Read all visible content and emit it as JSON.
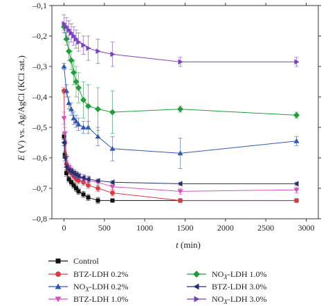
{
  "chart_data": {
    "type": "line",
    "xlabel": "t (min)",
    "ylabel": "E (V) vs. Ag/AgCl (KCl sat.)",
    "xlim": [
      -150,
      3150
    ],
    "ylim": [
      -0.8,
      -0.1
    ],
    "xticks": [
      0,
      500,
      1000,
      1500,
      2000,
      2500,
      3000
    ],
    "xtick_labels": [
      "0",
      "500",
      "1000",
      "1500",
      "2000",
      "2500",
      "3000"
    ],
    "yticks": [
      -0.1,
      -0.2,
      -0.3,
      -0.4,
      -0.5,
      -0.6,
      -0.7,
      -0.8
    ],
    "ytick_labels": [
      "–0,1",
      "–0,2",
      "–0,3",
      "–0,4",
      "–0,5",
      "–0,6",
      "–0,7",
      "–0,8"
    ],
    "grid": false,
    "legend_position": "bottom",
    "series": [
      {
        "name": "Control",
        "color": "#111111",
        "marker": "square",
        "x": [
          0,
          10,
          30,
          60,
          90,
          120,
          150,
          180,
          240,
          300,
          420,
          600,
          1440,
          2880
        ],
        "y": [
          -0.53,
          -0.59,
          -0.65,
          -0.67,
          -0.68,
          -0.69,
          -0.7,
          -0.71,
          -0.72,
          -0.73,
          -0.74,
          -0.74,
          -0.74,
          -0.74
        ],
        "err": [
          0.01,
          0.01,
          0.01,
          0.01,
          0.01,
          0.01,
          0.01,
          0.01,
          0.01,
          0.01,
          0.01,
          0.005,
          0.005,
          0.005
        ]
      },
      {
        "name": "BTZ-LDH 0.2%",
        "color": "#e0383e",
        "marker": "circle",
        "x": [
          0,
          10,
          30,
          60,
          90,
          120,
          150,
          180,
          240,
          300,
          420,
          600,
          1440,
          2880
        ],
        "y": [
          -0.38,
          -0.55,
          -0.62,
          -0.64,
          -0.65,
          -0.66,
          -0.67,
          -0.675,
          -0.68,
          -0.69,
          -0.7,
          -0.715,
          -0.74,
          -0.74
        ],
        "err": [
          0.01,
          0.01,
          0.01,
          0.01,
          0.01,
          0.01,
          0.01,
          0.01,
          0.01,
          0.01,
          0.01,
          0.01,
          0.005,
          0.005
        ]
      },
      {
        "name": "NOX-LDH 0.2%",
        "color": "#2f56b8",
        "marker": "triangle-up",
        "x": [
          0,
          30,
          60,
          90,
          120,
          150,
          180,
          240,
          300,
          420,
          600,
          1440,
          2880
        ],
        "y": [
          -0.3,
          -0.38,
          -0.42,
          -0.44,
          -0.47,
          -0.48,
          -0.49,
          -0.5,
          -0.5,
          -0.53,
          -0.57,
          -0.585,
          -0.545
        ],
        "err": [
          0.01,
          0.02,
          0.02,
          0.02,
          0.02,
          0.02,
          0.02,
          0.02,
          0.02,
          0.03,
          0.04,
          0.05,
          0.015
        ]
      },
      {
        "name": "BTZ-LDH 1.0%",
        "color": "#d84fc0",
        "marker": "triangle-down",
        "x": [
          0,
          10,
          30,
          60,
          90,
          120,
          150,
          180,
          240,
          300,
          420,
          600,
          1440,
          2880
        ],
        "y": [
          -0.47,
          -0.52,
          -0.6,
          -0.63,
          -0.64,
          -0.65,
          -0.655,
          -0.66,
          -0.67,
          -0.675,
          -0.68,
          -0.695,
          -0.71,
          -0.705
        ],
        "err": [
          0.02,
          0.02,
          0.01,
          0.01,
          0.01,
          0.01,
          0.01,
          0.01,
          0.01,
          0.01,
          0.01,
          0.01,
          0.01,
          0.01
        ]
      },
      {
        "name": "NOX-LDH 1.0%",
        "color": "#1f9e3a",
        "marker": "diamond",
        "x": [
          0,
          30,
          60,
          90,
          120,
          150,
          180,
          240,
          300,
          420,
          600,
          1440,
          2880
        ],
        "y": [
          -0.17,
          -0.21,
          -0.25,
          -0.28,
          -0.32,
          -0.35,
          -0.37,
          -0.41,
          -0.43,
          -0.44,
          -0.45,
          -0.44,
          -0.46
        ],
        "err": [
          0.01,
          0.02,
          0.03,
          0.03,
          0.04,
          0.05,
          0.05,
          0.06,
          0.07,
          0.07,
          0.07,
          0.01,
          0.01
        ]
      },
      {
        "name": "BTZ-LDH 3.0%",
        "color": "#223070",
        "marker": "triangle-left",
        "x": [
          0,
          10,
          30,
          60,
          90,
          120,
          150,
          180,
          240,
          300,
          420,
          600,
          1440,
          2880
        ],
        "y": [
          -0.55,
          -0.6,
          -0.63,
          -0.64,
          -0.645,
          -0.65,
          -0.655,
          -0.66,
          -0.665,
          -0.67,
          -0.675,
          -0.68,
          -0.685,
          -0.685
        ],
        "err": [
          0.01,
          0.01,
          0.01,
          0.01,
          0.01,
          0.01,
          0.01,
          0.01,
          0.01,
          0.01,
          0.005,
          0.005,
          0.005,
          0.005
        ]
      },
      {
        "name": "NOX-LDH 3.0%",
        "color": "#7b3fc4",
        "marker": "triangle-right",
        "x": [
          0,
          30,
          60,
          90,
          120,
          150,
          180,
          240,
          300,
          420,
          600,
          1440,
          2880
        ],
        "y": [
          -0.16,
          -0.17,
          -0.18,
          -0.19,
          -0.2,
          -0.21,
          -0.22,
          -0.23,
          -0.24,
          -0.25,
          -0.26,
          -0.285,
          -0.285
        ],
        "err": [
          0.03,
          0.03,
          0.03,
          0.03,
          0.03,
          0.03,
          0.03,
          0.03,
          0.04,
          0.04,
          0.04,
          0.015,
          0.015
        ]
      }
    ],
    "legend": [
      {
        "label": "Control",
        "sub": "",
        "tail": ""
      },
      {
        "label": "BTZ-LDH 0.2%",
        "sub": "",
        "tail": ""
      },
      {
        "label": "NO",
        "sub": "X",
        "tail": "-LDH 0.2%"
      },
      {
        "label": "BTZ-LDH 1.0%",
        "sub": "",
        "tail": ""
      },
      {
        "label": "NO",
        "sub": "X",
        "tail": "-LDH 1.0%"
      },
      {
        "label": "BTZ-LDH 3.0%",
        "sub": "",
        "tail": ""
      },
      {
        "label": "NO",
        "sub": "X",
        "tail": "-LDH 3.0%"
      }
    ]
  }
}
